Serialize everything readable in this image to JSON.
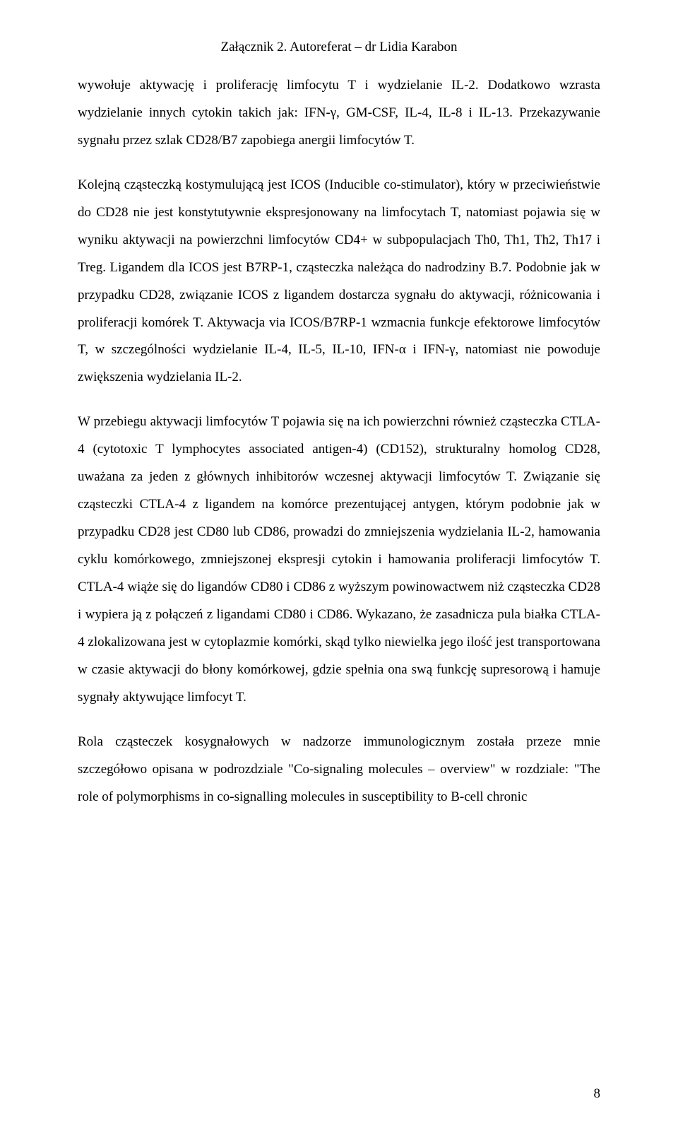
{
  "header": "Załącznik 2. Autoreferat – dr Lidia Karabon",
  "paragraphs": {
    "p1": "wywołuje aktywację i proliferację limfocytu T i wydzielanie IL-2. Dodatkowo wzrasta wydzielanie innych cytokin takich jak: IFN-γ, GM-CSF, IL-4, IL-8 i IL-13. Przekazywanie sygnału przez szlak CD28/B7 zapobiega anergii limfocytów T.",
    "p2": "Kolejną cząsteczką kostymulującą jest ICOS (Inducible co-stimulator), który w przeciwieństwie do CD28 nie jest konstytutywnie ekspresjonowany na limfocytach T, natomiast pojawia się w wyniku aktywacji na  powierzchni limfocytów CD4+ w subpopulacjach Th0, Th1, Th2, Th17 i Treg. Ligandem dla ICOS jest B7RP-1, cząsteczka należąca do nadrodziny B.7. Podobnie jak w przypadku CD28, związanie ICOS z ligandem dostarcza sygnału do aktywacji, różnicowania i proliferacji  komórek T. Aktywacja via ICOS/B7RP-1 wzmacnia funkcje efektorowe limfocytów T, w szczególności wydzielanie IL-4, IL-5, IL-10, IFN-α i IFN-γ, natomiast nie powoduje zwiększenia wydzielania IL-2.",
    "p3": "W przebiegu aktywacji limfocytów T pojawia się na ich powierzchni również cząsteczka CTLA-4 (cytotoxic T lymphocytes associated antigen-4) (CD152), strukturalny homolog CD28, uważana za jeden z głównych inhibitorów wczesnej aktywacji limfocytów T. Związanie się cząsteczki CTLA-4 z ligandem na komórce prezentującej antygen, którym podobnie jak w przypadku CD28 jest CD80 lub CD86, prowadzi do zmniejszenia wydzielania IL-2, hamowania cyklu komórkowego, zmniejszonej ekspresji cytokin i hamowania proliferacji limfocytów T. CTLA-4 wiąże się do ligandów CD80 i CD86 z wyższym powinowactwem niż cząsteczka CD28 i wypiera ją z połączeń z ligandami CD80 i CD86. Wykazano, że zasadnicza pula białka CTLA-4 zlokalizowana jest w cytoplazmie komórki, skąd tylko niewielka jego ilość jest transportowana w czasie aktywacji do błony komórkowej, gdzie spełnia ona swą funkcję supresorową i hamuje sygnały aktywujące limfocyt T.",
    "p4": "Rola cząsteczek kosygnałowych w nadzorze immunologicznym została przeze mnie szczegółowo opisana w podrozdziale \"Co-signaling molecules – overview\" w rozdziale: \"The role of polymorphisms in co-signalling molecules in susceptibility to B-cell chronic"
  },
  "pageNumber": "8"
}
